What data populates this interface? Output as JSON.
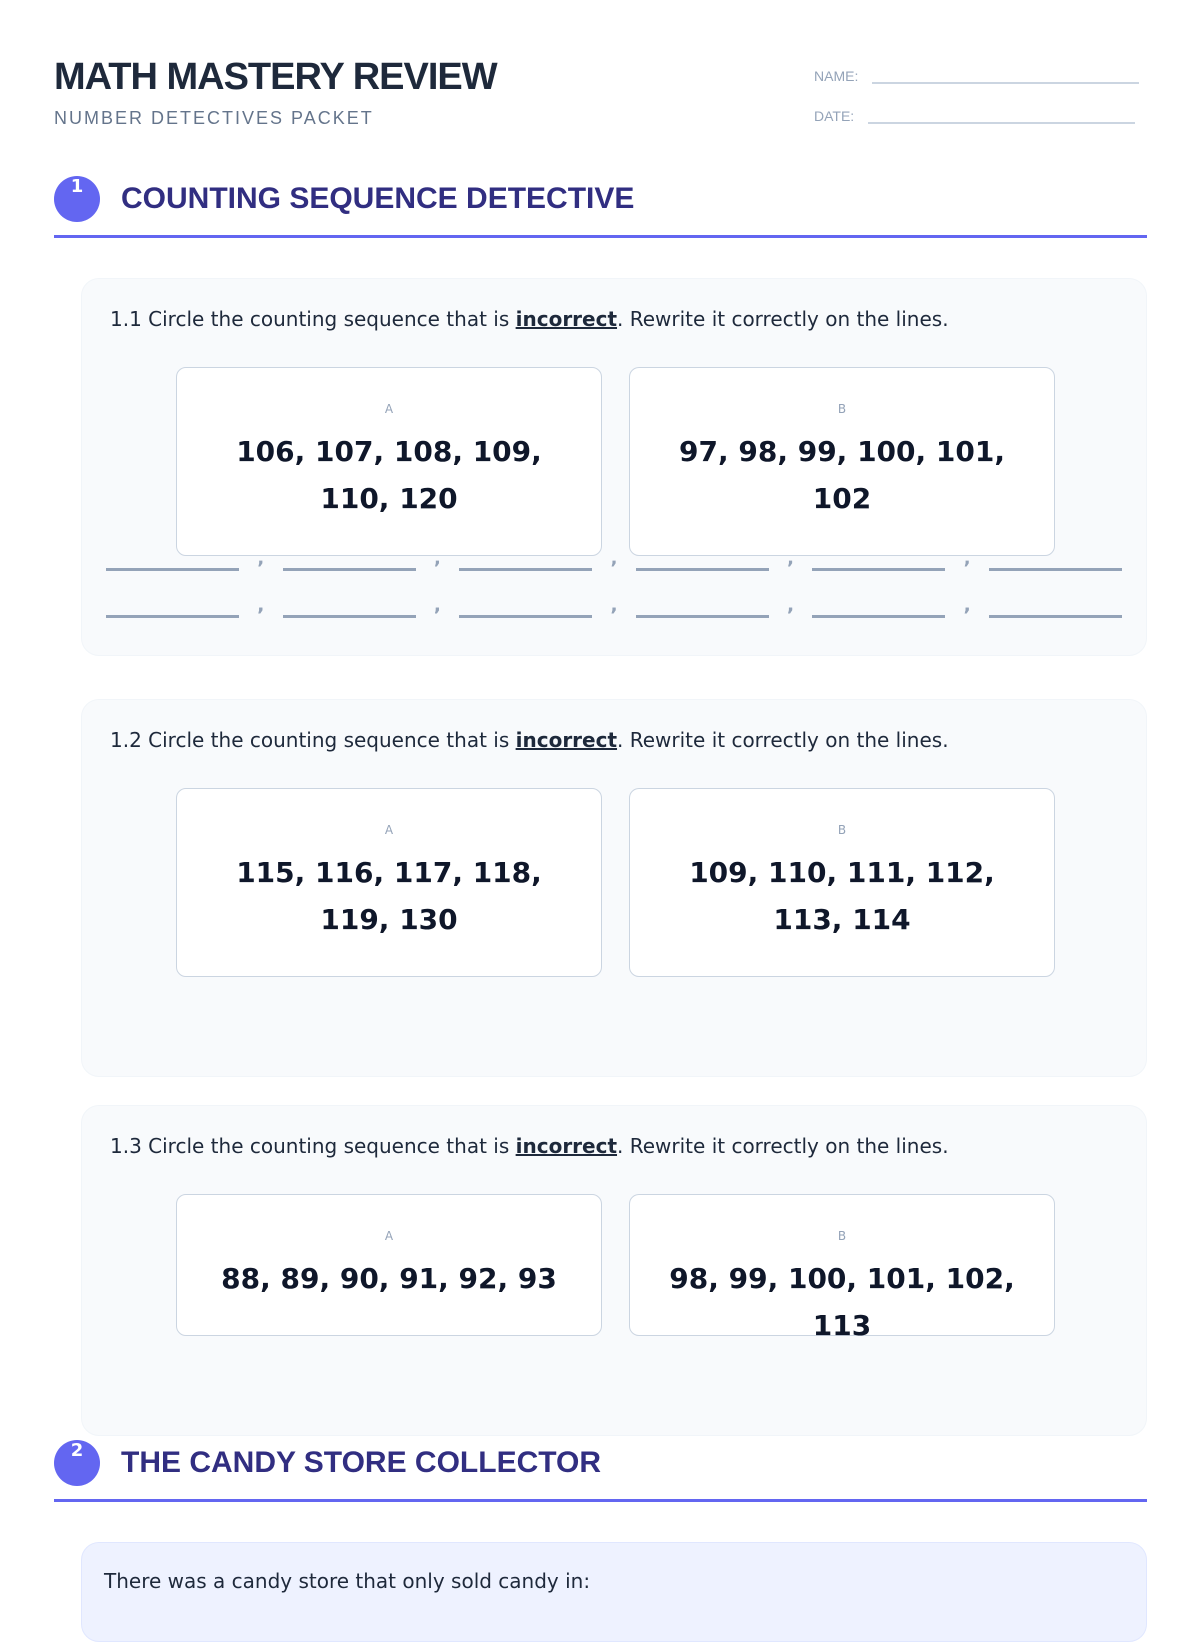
{
  "header": {
    "title": "MATH MASTERY REVIEW",
    "subtitle": "NUMBER DETECTIVES PACKET",
    "name_label": "NAME:",
    "date_label": "DATE:"
  },
  "sections": [
    {
      "number": "1",
      "title": "COUNTING SEQUENCE DETECTIVE"
    },
    {
      "number": "2",
      "title": "THE CANDY STORE COLLECTOR"
    }
  ],
  "questions": [
    {
      "prefix": "1.1 Circle the counting sequence that is ",
      "emphasis": "incorrect",
      "suffix": ". Rewrite it correctly on the lines.",
      "options": [
        {
          "label": "A",
          "sequence": "106, 107, 108, 109, 110, 120"
        },
        {
          "label": "B",
          "sequence": "97, 98, 99, 100, 101, 102"
        }
      ]
    },
    {
      "prefix": "1.2 Circle the counting sequence that is ",
      "emphasis": "incorrect",
      "suffix": ". Rewrite it correctly on the lines.",
      "options": [
        {
          "label": "A",
          "sequence": "115, 116, 117, 118, 119, 130"
        },
        {
          "label": "B",
          "sequence": "109, 110, 111, 112, 113, 114"
        }
      ]
    },
    {
      "prefix": "1.3 Circle the counting sequence that is ",
      "emphasis": "incorrect",
      "suffix": ". Rewrite it correctly on the lines.",
      "options": [
        {
          "label": "A",
          "sequence": "88, 89, 90, 91, 92, 93"
        },
        {
          "label": "B",
          "sequence": "98, 99, 100, 101, 102, 113"
        }
      ]
    }
  ],
  "blank_separator": ",",
  "story": {
    "text": "There was a candy store that only sold candy in:"
  },
  "colors": {
    "accent": "#6366f1",
    "heading": "#312e81"
  }
}
